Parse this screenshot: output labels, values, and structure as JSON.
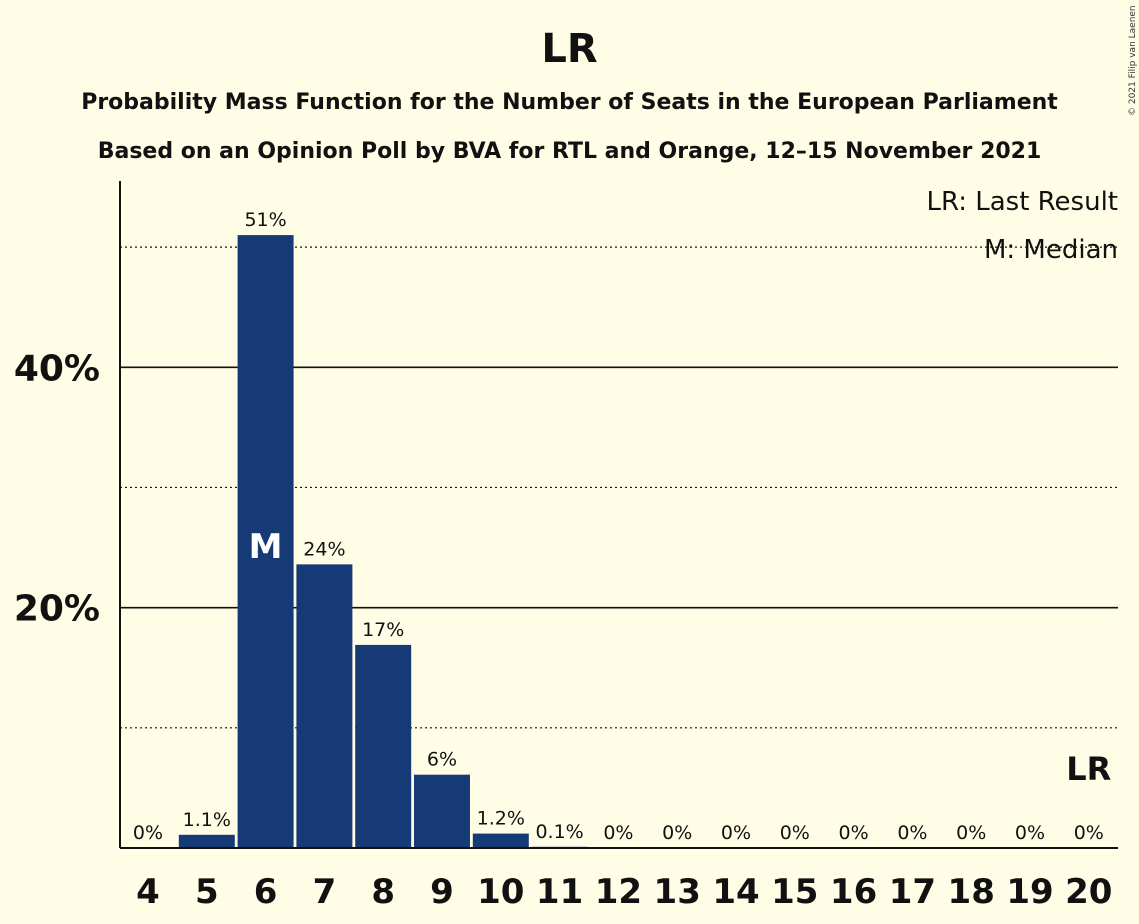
{
  "title": "LR",
  "subtitle_line1": "Probability Mass Function for the Number of Seats in the European Parliament",
  "subtitle_line2": "Based on an Opinion Poll by BVA for RTL and Orange, 12–15 November 2021",
  "copyright": "© 2021 Filip van Laenen",
  "legend": {
    "last_result": "LR: Last Result",
    "median": "M: Median"
  },
  "median_marker": "M",
  "last_result_marker": "LR",
  "colors": {
    "background": "#fffde6",
    "bar": "#163a75",
    "text": "#111111"
  },
  "chart_data": {
    "type": "bar",
    "title": "LR",
    "categories": [
      "4",
      "5",
      "6",
      "7",
      "8",
      "9",
      "10",
      "11",
      "12",
      "13",
      "14",
      "15",
      "16",
      "17",
      "18",
      "19",
      "20"
    ],
    "values": [
      0,
      1.1,
      51,
      23.6,
      16.9,
      6.1,
      1.2,
      0.1,
      0,
      0,
      0,
      0,
      0,
      0,
      0,
      0,
      0
    ],
    "data_labels": [
      "0%",
      "1.1%",
      "51%",
      "24%",
      "17%",
      "6%",
      "1.2%",
      "0.1%",
      "0%",
      "0%",
      "0%",
      "0%",
      "0%",
      "0%",
      "0%",
      "0%",
      "0%"
    ],
    "y_ticks": [
      20,
      40
    ],
    "y_tick_labels": [
      "20%",
      "40%"
    ],
    "dotted_gridlines": [
      10,
      30,
      50
    ],
    "ylim": [
      0,
      55.5
    ],
    "median_seat": "6",
    "last_result_seat": "20",
    "legend_position": "top-right"
  }
}
